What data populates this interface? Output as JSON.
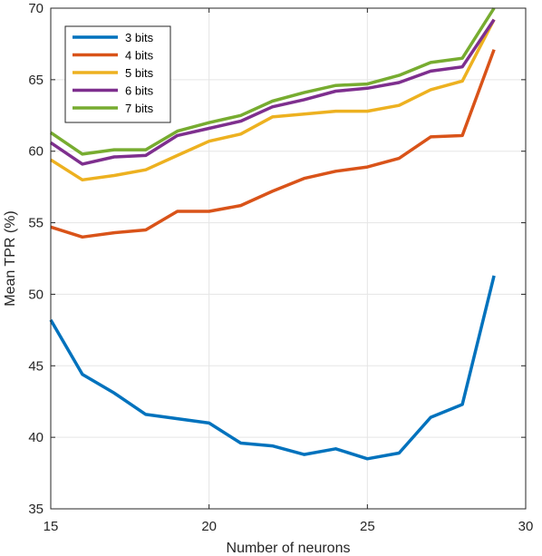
{
  "chart_data": {
    "type": "line",
    "title": "",
    "xlabel": "Number of neurons",
    "ylabel": "Mean TPR (%)",
    "xlim": [
      15,
      30
    ],
    "ylim": [
      35,
      70
    ],
    "xticks": [
      15,
      20,
      25,
      30
    ],
    "yticks": [
      35,
      40,
      45,
      50,
      55,
      60,
      65,
      70
    ],
    "grid": true,
    "legend_position": "top-left",
    "x": [
      15,
      16,
      17,
      18,
      19,
      20,
      21,
      22,
      23,
      24,
      25,
      26,
      27,
      28,
      29
    ],
    "series": [
      {
        "name": "3 bits",
        "color": "#0072BD",
        "values": [
          48.2,
          44.4,
          43.1,
          41.6,
          41.3,
          41.0,
          39.6,
          39.4,
          38.8,
          39.2,
          38.5,
          38.9,
          41.4,
          42.3,
          51.3
        ]
      },
      {
        "name": "4 bits",
        "color": "#D95319",
        "values": [
          54.7,
          54.0,
          54.3,
          54.5,
          55.8,
          55.8,
          56.2,
          57.2,
          58.1,
          58.6,
          58.9,
          59.5,
          61.0,
          61.1,
          67.1
        ]
      },
      {
        "name": "5 bits",
        "color": "#EDB120",
        "values": [
          59.4,
          58.0,
          58.3,
          58.7,
          59.7,
          60.7,
          61.2,
          62.4,
          62.6,
          62.8,
          62.8,
          63.2,
          64.3,
          64.9,
          69.2
        ]
      },
      {
        "name": "6 bits",
        "color": "#7E2F8E",
        "values": [
          60.6,
          59.1,
          59.6,
          59.7,
          61.1,
          61.6,
          62.1,
          63.1,
          63.6,
          64.2,
          64.4,
          64.8,
          65.6,
          65.9,
          69.2
        ]
      },
      {
        "name": "7 bits",
        "color": "#77AC30",
        "values": [
          61.3,
          59.8,
          60.1,
          60.1,
          61.4,
          62.0,
          62.5,
          63.5,
          64.1,
          64.6,
          64.7,
          65.3,
          66.2,
          66.5,
          70.0
        ]
      }
    ]
  }
}
